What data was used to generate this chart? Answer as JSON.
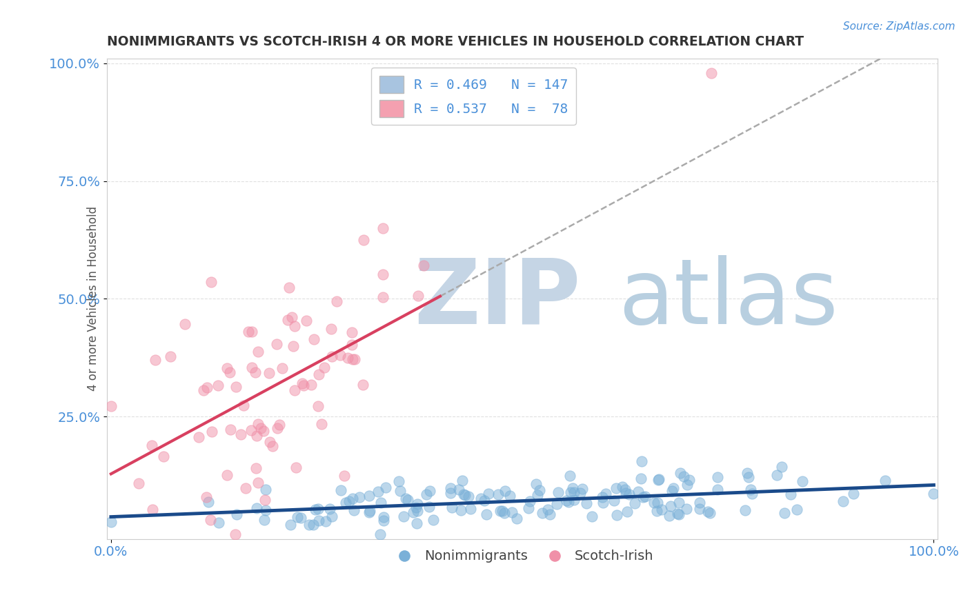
{
  "title": "NONIMMIGRANTS VS SCOTCH-IRISH 4 OR MORE VEHICLES IN HOUSEHOLD CORRELATION CHART",
  "source": "Source: ZipAtlas.com",
  "ylabel": "4 or more Vehicles in Household",
  "legend_entries": [
    {
      "label": "Nonimmigrants",
      "color": "#a8c4e0",
      "R": 0.469,
      "N": 147
    },
    {
      "label": "Scotch-Irish",
      "color": "#f4a0b0",
      "R": 0.537,
      "N": 78
    }
  ],
  "blue_scatter_color": "#7ab0d8",
  "pink_scatter_color": "#f090a8",
  "blue_line_color": "#1a4a8a",
  "pink_line_color": "#d84060",
  "dash_line_color": "#aaaaaa",
  "title_color": "#333333",
  "axis_color": "#4a90d9",
  "watermark_zip": "ZIP",
  "watermark_atlas": "atlas",
  "watermark_color_zip": "#c5d5e5",
  "watermark_color_atlas": "#b8cfe0",
  "background_color": "#ffffff",
  "grid_color": "#dddddd",
  "N_blue": 147,
  "N_pink": 78,
  "R_blue": 0.469,
  "R_pink": 0.537,
  "x_lim": [
    0.0,
    1.0
  ],
  "y_lim": [
    0.0,
    1.0
  ],
  "y_ticks": [
    0.25,
    0.5,
    0.75,
    1.0
  ],
  "y_tick_labels": [
    "25.0%",
    "50.0%",
    "75.0%",
    "100.0%"
  ],
  "x_ticks": [
    0.0,
    1.0
  ],
  "x_tick_labels": [
    "0.0%",
    "100.0%"
  ]
}
